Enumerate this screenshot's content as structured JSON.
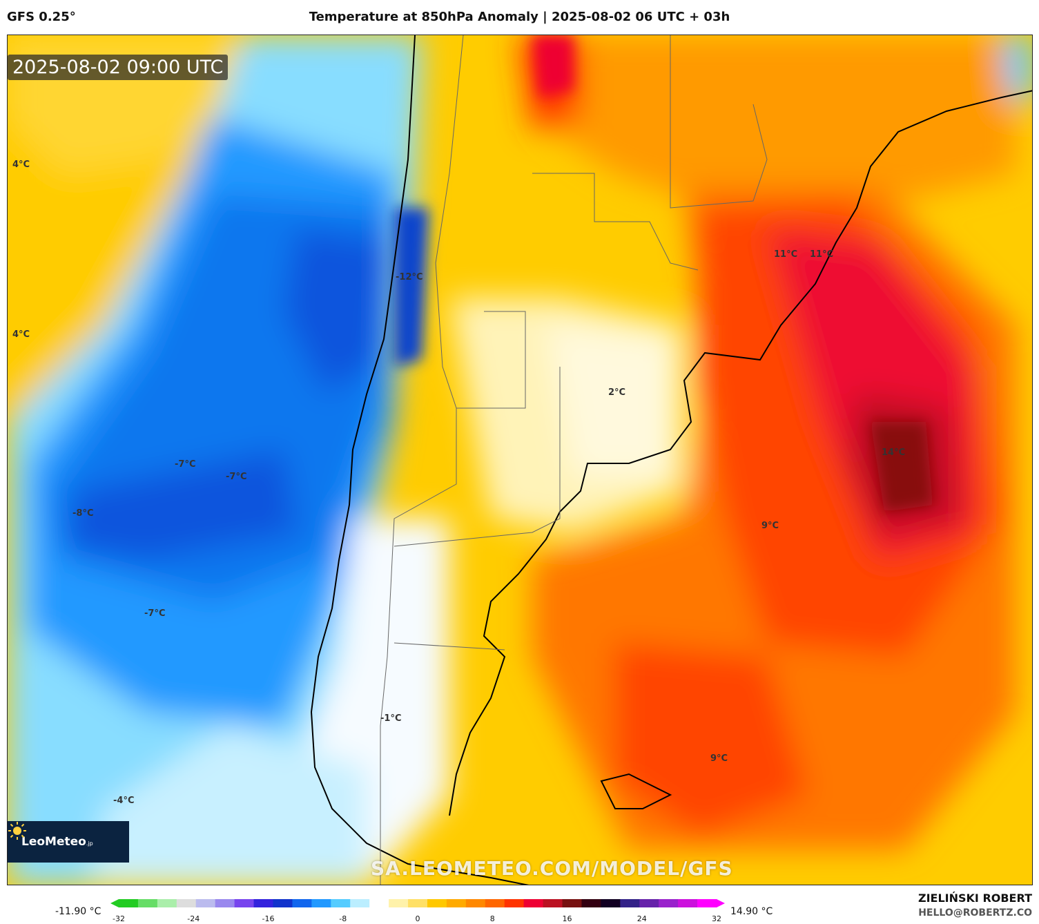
{
  "header": {
    "model": "GFS 0.25°",
    "title": "Temperature at 850hPa Anomaly | 2025-08-02 06 UTC + 03h"
  },
  "map": {
    "timestamp": "2025-08-02 09:00 UTC",
    "watermark": "SA.LEOMETEO.COM/MODEL/GFS",
    "labels": [
      "4°C",
      "4°C",
      "-12°C",
      "-7°C",
      "-7°C",
      "-8°C",
      "-7°C",
      "-4°C",
      "-1°C",
      "2°C",
      "11°C",
      "11°C",
      "14°C",
      "9°C",
      "9°C"
    ]
  },
  "logo": {
    "name": "LeoMeteo",
    "suffix": ".jp"
  },
  "colorbar": {
    "min_label": "-11.90 °C",
    "max_label": "14.90 °C",
    "ticks": [
      "-32",
      "-24",
      "-16",
      "-8",
      "0",
      "8",
      "16",
      "24",
      "32"
    ],
    "colors": [
      "#22cc22",
      "#66dd66",
      "#aaeeaa",
      "#dddddd",
      "#bbbbee",
      "#9988ee",
      "#7744ee",
      "#3322dd",
      "#1133cc",
      "#1166ee",
      "#2299ff",
      "#55ccff",
      "#bbeeff",
      "#ffffff",
      "#fff2aa",
      "#ffe066",
      "#ffc800",
      "#ffaa00",
      "#ff8800",
      "#ff6600",
      "#ff3300",
      "#ee0033",
      "#bb1122",
      "#771111",
      "#330011",
      "#110022",
      "#332288",
      "#6622aa",
      "#9922cc",
      "#cc11dd",
      "#ff00ff"
    ]
  },
  "footer": {
    "author": "ZIELIŃSKI ROBERT",
    "email": "HELLO@ROBERTZ.CO"
  }
}
